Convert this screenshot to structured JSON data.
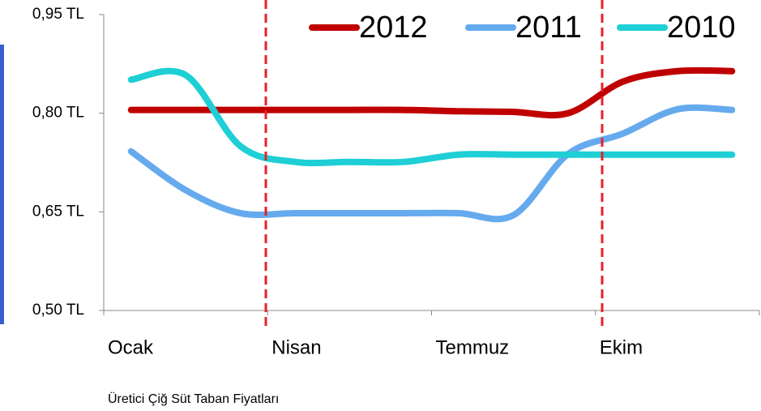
{
  "chart_data": {
    "type": "line",
    "categories": [
      "Ocak",
      null,
      null,
      "Nisan",
      null,
      null,
      "Temmuz",
      null,
      null,
      "Ekim",
      null,
      null
    ],
    "series": [
      {
        "name": "2012",
        "color": "#c00000",
        "values": [
          0.805,
          0.805,
          0.805,
          0.805,
          0.805,
          0.805,
          0.803,
          0.802,
          0.8,
          0.848,
          0.864,
          0.864
        ]
      },
      {
        "name": "2011",
        "color": "#66aaee",
        "values": [
          0.742,
          0.683,
          0.648,
          0.648,
          0.648,
          0.648,
          0.648,
          0.645,
          0.738,
          0.769,
          0.806,
          0.805
        ]
      },
      {
        "name": "2010",
        "color": "#1ecfd5",
        "values": [
          0.851,
          0.858,
          0.75,
          0.726,
          0.726,
          0.726,
          0.737,
          0.737,
          0.737,
          0.737,
          0.737,
          0.737
        ]
      }
    ],
    "ylim": [
      0.5,
      0.95
    ],
    "yticks": [
      {
        "value": 0.5,
        "label": "0,50 TL"
      },
      {
        "value": 0.65,
        "label": "0,65 TL"
      },
      {
        "value": 0.8,
        "label": "0,80 TL"
      },
      {
        "value": 0.95,
        "label": "0,95 TL"
      }
    ],
    "legend": "upper right",
    "caption": "Üretici Çiğ Süt Taban Fiyatları"
  }
}
